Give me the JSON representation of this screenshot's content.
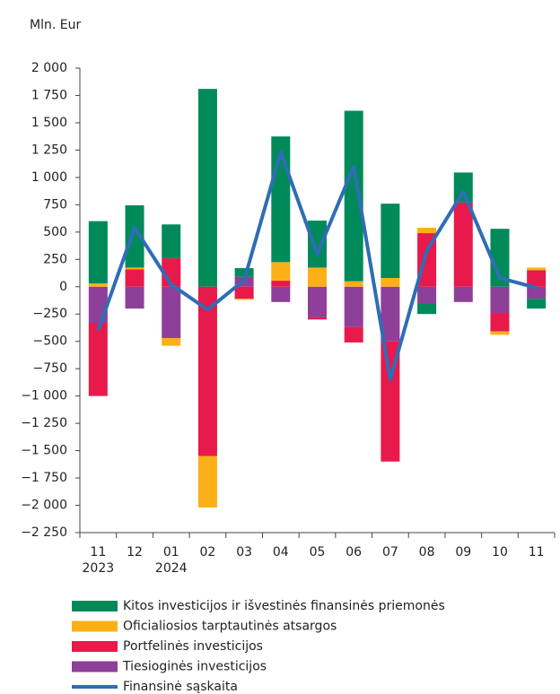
{
  "chart_data": {
    "type": "bar",
    "stacked": true,
    "y_label": "Mln. Eur",
    "categories": [
      "11",
      "12",
      "01",
      "02",
      "03",
      "04",
      "05",
      "06",
      "07",
      "08",
      "09",
      "10",
      "11"
    ],
    "category_years": [
      "2023",
      null,
      "2024",
      null,
      null,
      null,
      null,
      null,
      null,
      null,
      null,
      null,
      null
    ],
    "series": [
      {
        "name": "Tiesioginės investicijos",
        "color": "#8e3f9a",
        "values": [
          -330,
          -200,
          -470,
          0,
          90,
          -140,
          -280,
          -370,
          -500,
          -150,
          -140,
          -240,
          -110
        ]
      },
      {
        "name": "Portfelinės investicijos",
        "color": "#e8194b",
        "values": [
          -670,
          160,
          260,
          -1550,
          -110,
          55,
          -20,
          -140,
          -1100,
          490,
          770,
          -170,
          150
        ]
      },
      {
        "name": "Oficialiosios tarptautinės atsargos",
        "color": "#fbb018",
        "values": [
          30,
          15,
          -70,
          -470,
          -10,
          170,
          175,
          50,
          80,
          50,
          0,
          -30,
          25
        ]
      },
      {
        "name": "Kitos investicijos ir išvestinės finansinės priemonės",
        "color": "#008a5a",
        "values": [
          570,
          570,
          310,
          1810,
          80,
          1150,
          430,
          1560,
          680,
          -100,
          275,
          530,
          -90
        ]
      }
    ],
    "line": {
      "name": "Finansinė sąskaita",
      "color": "#2f6db5",
      "values": [
        -400,
        540,
        20,
        -210,
        60,
        1230,
        300,
        1100,
        -850,
        330,
        870,
        80,
        -10
      ]
    },
    "ylim": [
      -2250,
      2000
    ],
    "yticks": [
      {
        "value": 2000,
        "label": "2 000"
      },
      {
        "value": 1750,
        "label": "1 750"
      },
      {
        "value": 1500,
        "label": "1 500"
      },
      {
        "value": 1250,
        "label": "1 250"
      },
      {
        "value": 1000,
        "label": "1 000"
      },
      750,
      500,
      250,
      0,
      {
        "value": -250,
        "label": "−250"
      },
      {
        "value": -500,
        "label": "−500"
      },
      {
        "value": -750,
        "label": "−750"
      },
      {
        "value": -1000,
        "label": "−1 000"
      },
      {
        "value": -1250,
        "label": "−1 250"
      },
      {
        "value": -1500,
        "label": "−1 500"
      },
      {
        "value": -1750,
        "label": "−1 750"
      },
      {
        "value": -2000,
        "label": "−2 000"
      },
      {
        "value": -2250,
        "label": "−2 250"
      }
    ]
  }
}
